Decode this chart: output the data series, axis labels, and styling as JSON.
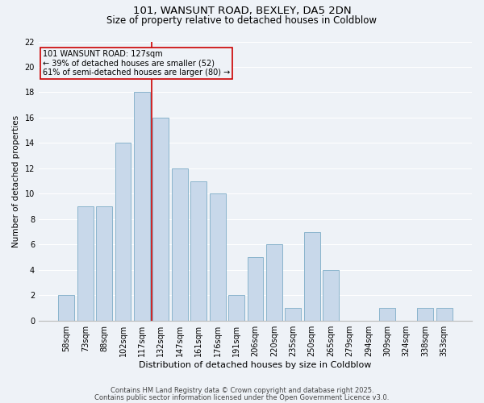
{
  "title1": "101, WANSUNT ROAD, BEXLEY, DA5 2DN",
  "title2": "Size of property relative to detached houses in Coldblow",
  "xlabel": "Distribution of detached houses by size in Coldblow",
  "ylabel": "Number of detached properties",
  "categories": [
    "58sqm",
    "73sqm",
    "88sqm",
    "102sqm",
    "117sqm",
    "132sqm",
    "147sqm",
    "161sqm",
    "176sqm",
    "191sqm",
    "206sqm",
    "220sqm",
    "235sqm",
    "250sqm",
    "265sqm",
    "279sqm",
    "294sqm",
    "309sqm",
    "324sqm",
    "338sqm",
    "353sqm"
  ],
  "values": [
    2,
    9,
    9,
    14,
    18,
    16,
    12,
    11,
    10,
    2,
    5,
    6,
    1,
    7,
    4,
    0,
    0,
    1,
    0,
    1,
    1
  ],
  "bar_color": "#c8d8ea",
  "bar_edge_color": "#8ab4cc",
  "vline_color": "#cc0000",
  "vline_pos": 4.5,
  "annotation_text": "101 WANSUNT ROAD: 127sqm\n← 39% of detached houses are smaller (52)\n61% of semi-detached houses are larger (80) →",
  "ylim": [
    0,
    22
  ],
  "yticks": [
    0,
    2,
    4,
    6,
    8,
    10,
    12,
    14,
    16,
    18,
    20,
    22
  ],
  "footer1": "Contains HM Land Registry data © Crown copyright and database right 2025.",
  "footer2": "Contains public sector information licensed under the Open Government Licence v3.0.",
  "background_color": "#eef2f7",
  "grid_color": "#ffffff",
  "title1_fontsize": 9.5,
  "title2_fontsize": 8.5,
  "xlabel_fontsize": 8,
  "ylabel_fontsize": 7.5,
  "tick_fontsize": 7,
  "footer_fontsize": 6,
  "annotation_fontsize": 7
}
